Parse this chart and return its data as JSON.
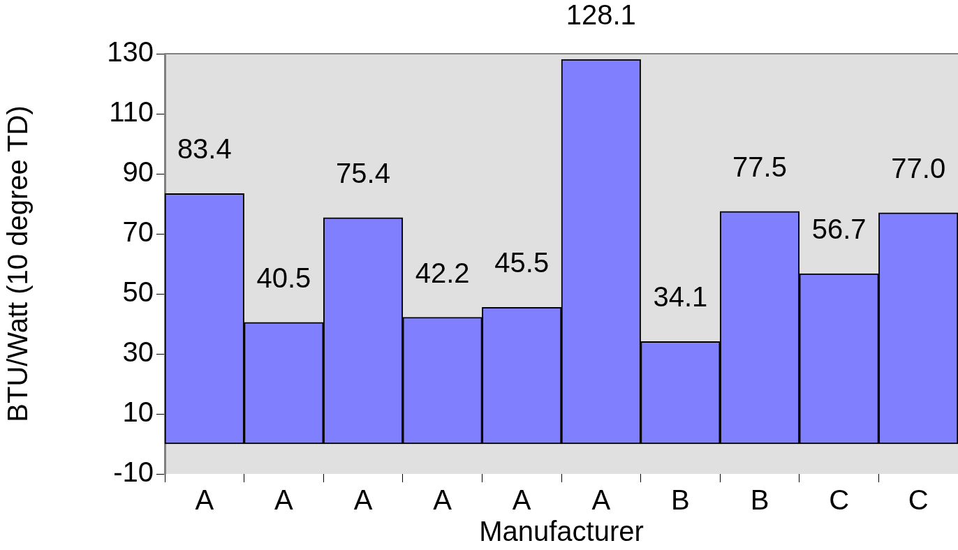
{
  "chart_data": {
    "type": "bar",
    "xlabel": "Manufacturer",
    "ylabel": "BTU/Watt (10 degree TD)",
    "categories": [
      "A",
      "A",
      "A",
      "A",
      "A",
      "A",
      "B",
      "B",
      "C",
      "C"
    ],
    "values": [
      83.4,
      40.5,
      75.4,
      42.2,
      45.5,
      128.1,
      34.1,
      77.5,
      56.7,
      77.0
    ],
    "value_labels": [
      "83.4",
      "40.5",
      "75.4",
      "42.2",
      "45.5",
      "128.1",
      "34.1",
      "77.5",
      "56.7",
      "77.0"
    ],
    "color": "#8080ff",
    "ylim": [
      -10,
      130
    ],
    "yticks": [
      -10,
      10,
      30,
      50,
      70,
      90,
      110,
      130
    ],
    "grid": false,
    "legend": false
  }
}
